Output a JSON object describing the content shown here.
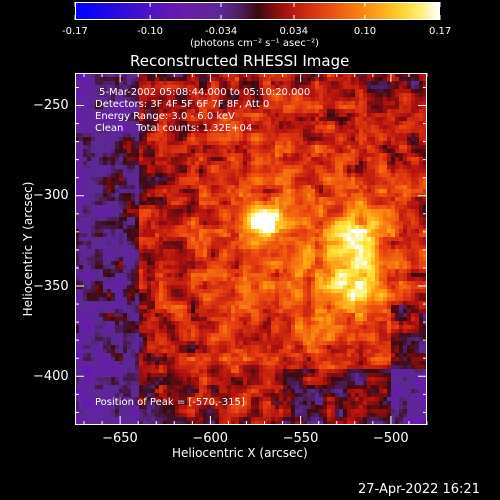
{
  "colorbar": {
    "tick_labels": [
      "-0.17",
      "-0.10",
      "-0.034",
      "0.034",
      "0.10",
      "0.17"
    ],
    "tick_values": [
      -0.17,
      -0.1,
      -0.034,
      0.034,
      0.1,
      0.17
    ],
    "range": [
      -0.17,
      0.17
    ],
    "units_label": "(photons cm⁻² s⁻¹ asec⁻²)"
  },
  "title": "Reconstructed RHESSI Image",
  "annotations": {
    "time_range": "5-Mar-2002 05:08:44.000 to 05:10:20.000",
    "detectors": "Detectors: 3F 4F 5F 6F 7F 8F, Att 0",
    "energy": "Energy Range: 3.0 - 6.0 keV",
    "method": "Clean    Total counts: 1.32E+04",
    "peak": "Position of Peak = [-570,-315]"
  },
  "axes": {
    "xlabel": "Heliocentric X (arcsec)",
    "ylabel": "Heliocentric Y (arcsec)",
    "xrange": [
      -675,
      -480
    ],
    "yrange": [
      -427,
      -232
    ],
    "xticks": [
      -650,
      -600,
      -550,
      -500
    ],
    "yticks": [
      -250,
      -300,
      -350,
      -400
    ],
    "xtick_labels": [
      "−650",
      "−600",
      "−550",
      "−500"
    ],
    "ytick_labels": [
      "−250",
      "−300",
      "−350",
      "−400"
    ]
  },
  "peak_position": [
    -570,
    -315
  ],
  "timestamp": "27-Apr-2022 16:21",
  "colors": {
    "background": "#000000",
    "foreground": "#ffffff",
    "colormap": [
      "#0000ff",
      "#6a1ab0",
      "#5a2a90",
      "#3a0a10",
      "#b01010",
      "#e84010",
      "#ff9a10",
      "#ffe840",
      "#ffffff"
    ]
  }
}
